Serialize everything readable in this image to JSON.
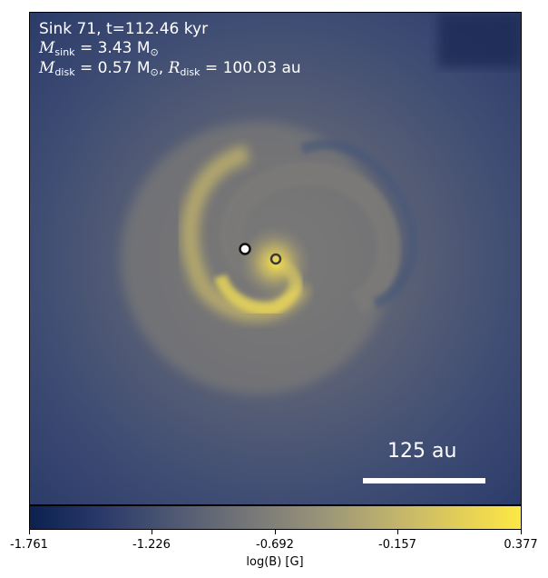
{
  "annotation": {
    "line1": "Sink 71, t=112.46 kyr",
    "msink_symbol": "M",
    "msink_sub": "sink",
    "msink_value": " = 3.43 M",
    "sun_symbol": "⊙",
    "mdisk_symbol": "M",
    "mdisk_sub": "disk",
    "mdisk_value": " = 0.57 M",
    "rdisk_symbol": "R",
    "rdisk_sub": "disk",
    "rdisk_value": " = 100.03 au"
  },
  "scale_bar": {
    "label": "125 au"
  },
  "colorbar": {
    "ticks": [
      "-1.761",
      "-1.226",
      "-0.692",
      "-0.157",
      "0.377"
    ],
    "label": "log(B) [G]",
    "min": -1.761,
    "max": 0.377,
    "colors": [
      "#0b2150",
      "#505a73",
      "#777778",
      "#c3b56c",
      "#fde845"
    ]
  },
  "sinks": [
    {
      "name": "sink-primary",
      "fill": "#ffffff",
      "stroke": "#111111"
    },
    {
      "name": "sink-secondary",
      "fill": "#e8d35a",
      "stroke": "#3a3a3a"
    }
  ]
}
